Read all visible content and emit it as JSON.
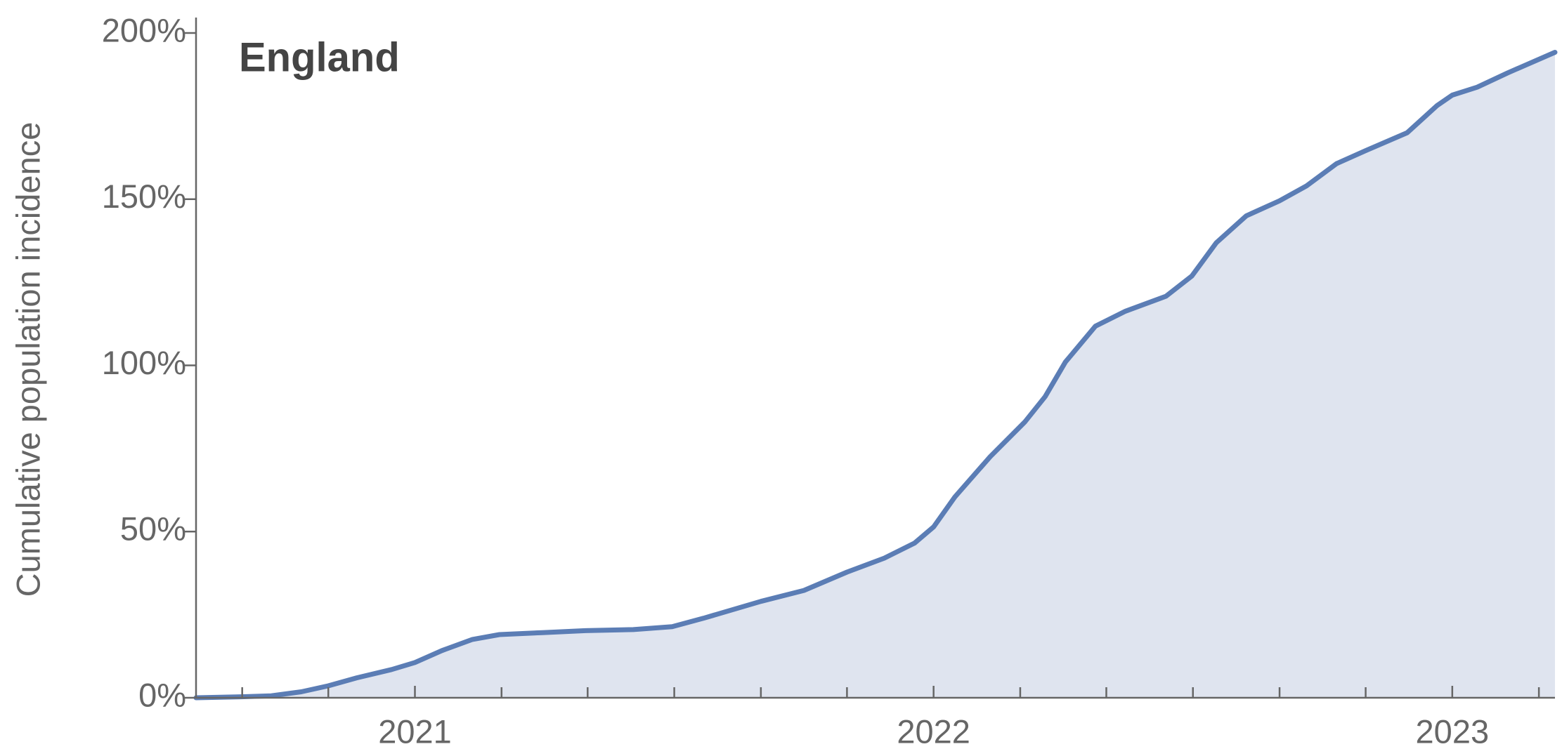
{
  "chart_data": {
    "type": "area",
    "title": "England",
    "y_label": "Cumulative population incidence",
    "x": [
      2020.578,
      2020.665,
      2020.723,
      2020.781,
      2020.833,
      2020.888,
      2020.955,
      2021.0,
      2021.052,
      2021.11,
      2021.163,
      2021.246,
      2021.329,
      2021.421,
      2021.496,
      2021.556,
      2021.667,
      2021.75,
      2021.833,
      2021.905,
      2021.963,
      2022.0,
      2022.041,
      2022.109,
      2022.176,
      2022.215,
      2022.254,
      2022.312,
      2022.37,
      2022.448,
      2022.498,
      2022.545,
      2022.603,
      2022.667,
      2022.719,
      2022.777,
      2022.833,
      2022.913,
      2022.971,
      2023.0,
      2023.048,
      2023.107,
      2023.198
    ],
    "series": [
      {
        "color": "#5b7db5",
        "fill": "#dfe4ef",
        "values": [
          0,
          0.3,
          0.6,
          1.8,
          3.6,
          6,
          8.5,
          10.6,
          14.2,
          17.5,
          19,
          19.6,
          20.2,
          20.5,
          21.4,
          23.9,
          29,
          32.3,
          37.8,
          42,
          46.5,
          51.4,
          60.4,
          72.5,
          83,
          90.6,
          101,
          111.8,
          116.3,
          120.8,
          126.9,
          136.9,
          145,
          149.5,
          154,
          160.7,
          164.6,
          170,
          178.2,
          181.3,
          183.7,
          188,
          194.2
        ]
      }
    ],
    "xlim": [
      2020.578,
      2023.198
    ],
    "xticks": [
      2021,
      2022,
      2023
    ],
    "xticks_minor": [
      2020.667,
      2020.833,
      2021.167,
      2021.333,
      2021.5,
      2021.667,
      2021.833,
      2022.167,
      2022.333,
      2022.5,
      2022.667,
      2022.833,
      2023.167
    ],
    "ylim": [
      0,
      200
    ],
    "yticks": [
      {
        "value": 0,
        "label": "0%"
      },
      {
        "value": 50,
        "label": "50%"
      },
      {
        "value": 100,
        "label": "100%"
      },
      {
        "value": 150,
        "label": "150%"
      },
      {
        "value": 200,
        "label": "200%"
      }
    ],
    "grid": false
  }
}
